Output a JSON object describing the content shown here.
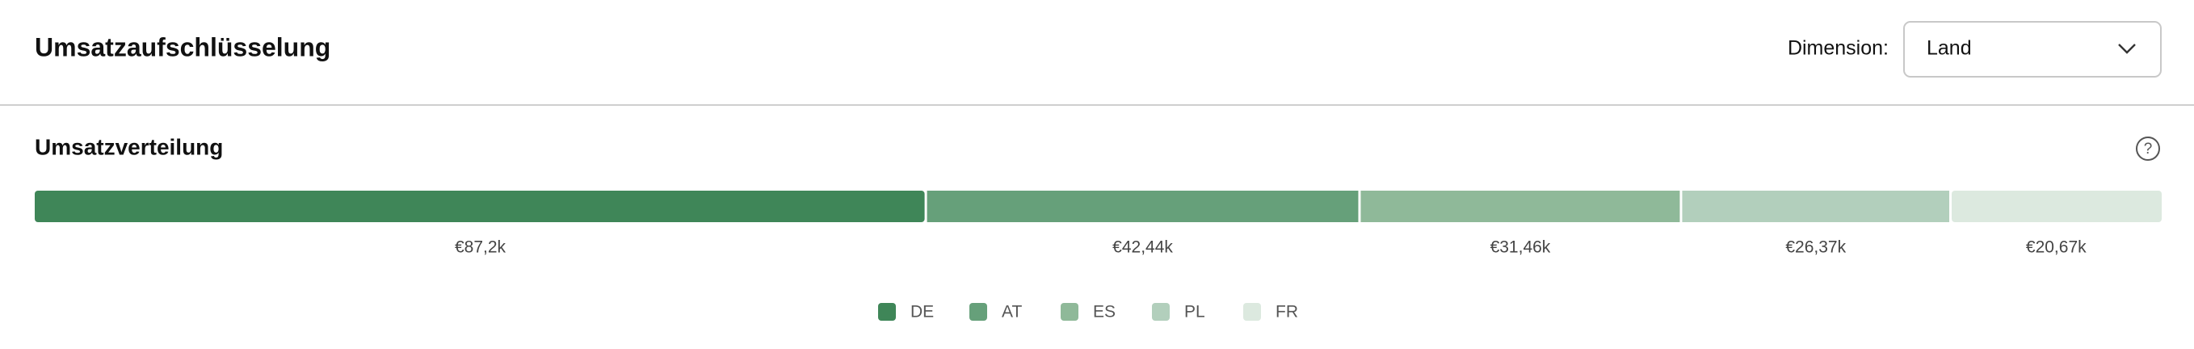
{
  "header": {
    "title": "Umsatzaufschlüsselung",
    "dimension_label": "Dimension:",
    "dimension_value": "Land"
  },
  "chart_data": {
    "type": "stacked-bar",
    "title": "Umsatzverteilung",
    "series": [
      {
        "name": "DE",
        "color": "#3f8658",
        "values": [
          87.2
        ],
        "value_labels": [
          "€87,2k"
        ]
      },
      {
        "name": "AT",
        "color": "#66a07a",
        "values": [
          42.44
        ],
        "value_labels": [
          "€42,44k"
        ]
      },
      {
        "name": "ES",
        "color": "#8fb999",
        "values": [
          31.46
        ],
        "value_labels": [
          "€31,46k"
        ]
      },
      {
        "name": "PL",
        "color": "#b2cfbc",
        "values": [
          26.37
        ],
        "value_labels": [
          "€26,37k"
        ]
      },
      {
        "name": "FR",
        "color": "#dce9df",
        "values": [
          20.67
        ],
        "value_labels": [
          "€20,67k"
        ]
      }
    ]
  }
}
